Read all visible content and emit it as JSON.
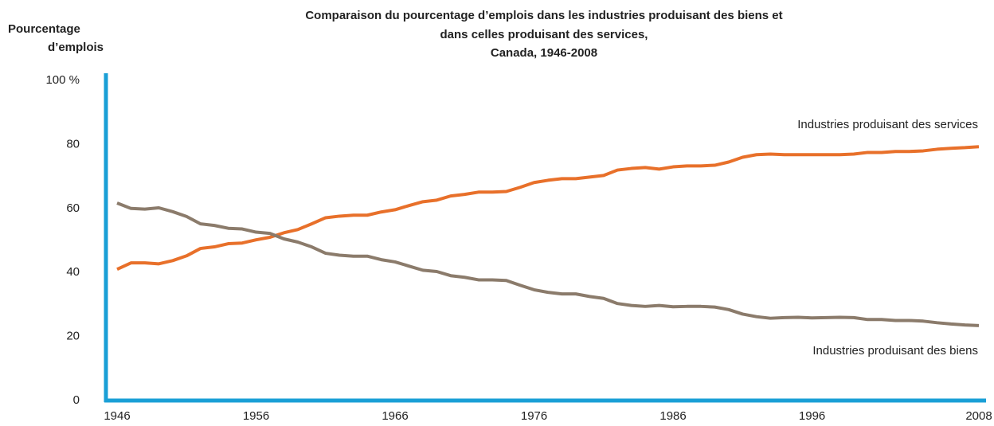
{
  "chart_data": {
    "type": "line",
    "title": [
      "Comparaison du pourcentage d’emplois dans les industries produisant des biens et",
      "dans celles produisant des services,",
      "Canada, 1946-2008"
    ],
    "ylabel": [
      "Pourcentage",
      "d’emplois"
    ],
    "x": [
      1946,
      1947,
      1948,
      1949,
      1950,
      1951,
      1952,
      1953,
      1954,
      1955,
      1956,
      1957,
      1958,
      1959,
      1960,
      1961,
      1962,
      1963,
      1964,
      1965,
      1966,
      1967,
      1968,
      1969,
      1970,
      1971,
      1972,
      1973,
      1974,
      1975,
      1976,
      1977,
      1978,
      1979,
      1980,
      1981,
      1982,
      1983,
      1984,
      1985,
      1986,
      1987,
      1988,
      1989,
      1990,
      1991,
      1992,
      1993,
      1994,
      1995,
      1996,
      1997,
      1998,
      1999,
      2000,
      2001,
      2002,
      2003,
      2004,
      2005,
      2006,
      2007,
      2008
    ],
    "series": [
      {
        "name": "Industries produisant des services",
        "color": "#e8702a",
        "values": [
          41,
          43,
          43,
          42.7,
          43.7,
          45.2,
          47.5,
          48,
          49,
          49.2,
          50.2,
          51,
          52.4,
          53.4,
          55.2,
          57.1,
          57.6,
          57.9,
          57.9,
          58.9,
          59.6,
          60.9,
          62.1,
          62.6,
          63.9,
          64.4,
          65.1,
          65.1,
          65.3,
          66.6,
          68.1,
          68.8,
          69.3,
          69.3,
          69.8,
          70.3,
          72,
          72.5,
          72.8,
          72.3,
          73,
          73.3,
          73.3,
          73.5,
          74.5,
          76,
          76.8,
          77,
          76.8,
          76.8,
          76.8,
          76.8,
          76.8,
          77,
          77.5,
          77.5,
          77.8,
          77.8,
          78,
          78.5,
          78.8,
          79,
          79.3
        ]
      },
      {
        "name": "Industries produisant des biens",
        "color": "#8b7b6b",
        "values": [
          61.7,
          60,
          59.8,
          60.2,
          59,
          57.5,
          55.2,
          54.7,
          53.8,
          53.6,
          52.6,
          52.2,
          50.5,
          49.5,
          48,
          46,
          45.4,
          45.1,
          45.1,
          44,
          43.3,
          42,
          40.7,
          40.3,
          39,
          38.5,
          37.7,
          37.7,
          37.5,
          36,
          34.6,
          33.8,
          33.3,
          33.3,
          32.5,
          31.9,
          30.3,
          29.7,
          29.4,
          29.7,
          29.3,
          29.4,
          29.4,
          29.2,
          28.4,
          27,
          26.2,
          25.7,
          25.9,
          26,
          25.8,
          25.9,
          26,
          25.9,
          25.3,
          25.3,
          25,
          25,
          24.8,
          24.3,
          23.9,
          23.6,
          23.4
        ]
      }
    ],
    "xlim": [
      1946,
      2008
    ],
    "xticks": [
      1946,
      1956,
      1966,
      1976,
      1986,
      1996,
      2008
    ],
    "ylim": [
      0,
      100
    ],
    "yticks": [
      0,
      20,
      40,
      60,
      80,
      {
        "value": 100,
        "label": "100 %"
      }
    ],
    "axis_color": "#1a9fd6"
  }
}
